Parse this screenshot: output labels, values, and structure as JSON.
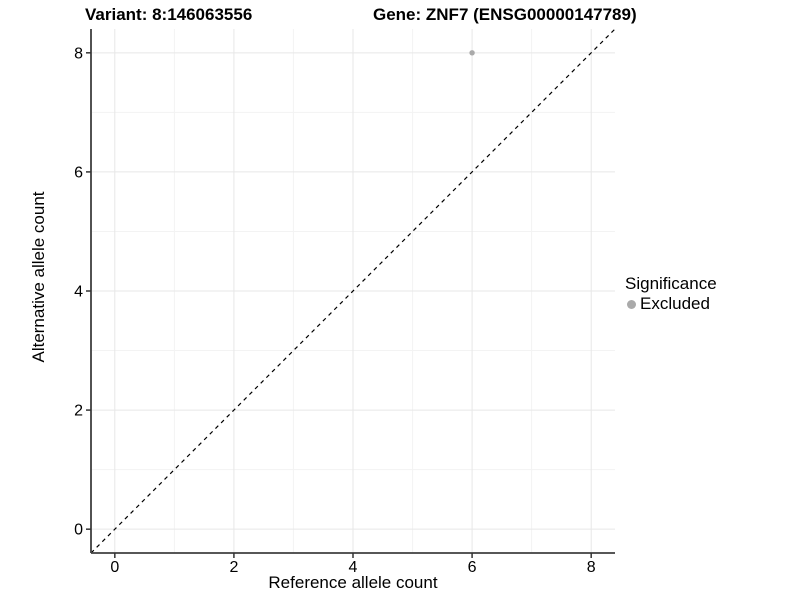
{
  "chart_data": {
    "type": "scatter",
    "title_left": "Variant: 8:146063556",
    "title_right": "Gene: ZNF7 (ENSG00000147789)",
    "xlabel": "Reference allele count",
    "ylabel": "Alternative allele count",
    "xlim": [
      -0.4,
      8.4
    ],
    "ylim": [
      -0.4,
      8.4
    ],
    "x_major_ticks": [
      0,
      2,
      4,
      6,
      8
    ],
    "y_major_ticks": [
      0,
      2,
      4,
      6,
      8
    ],
    "x_minor_ticks": [
      1,
      3,
      5,
      7
    ],
    "y_minor_ticks": [
      1,
      3,
      5,
      7
    ],
    "grid": true,
    "identity_line": {
      "slope": 1,
      "intercept": 0,
      "style": "dashed",
      "color": "#000000"
    },
    "series": [
      {
        "name": "Excluded",
        "color": "#aaaaaa",
        "points": [
          {
            "x": 6,
            "y": 8
          }
        ]
      }
    ],
    "legend": {
      "title": "Significance",
      "position": "right",
      "items": [
        {
          "label": "Excluded",
          "color": "#aaaaaa"
        }
      ]
    },
    "style": {
      "grid_major_color": "#e7e7e7",
      "grid_minor_color": "#f3f3f3",
      "axis_line_color": "#3f3f3f",
      "tick_color": "#333333",
      "tick_label_color": "#000000",
      "point_radius": 2.7
    }
  }
}
